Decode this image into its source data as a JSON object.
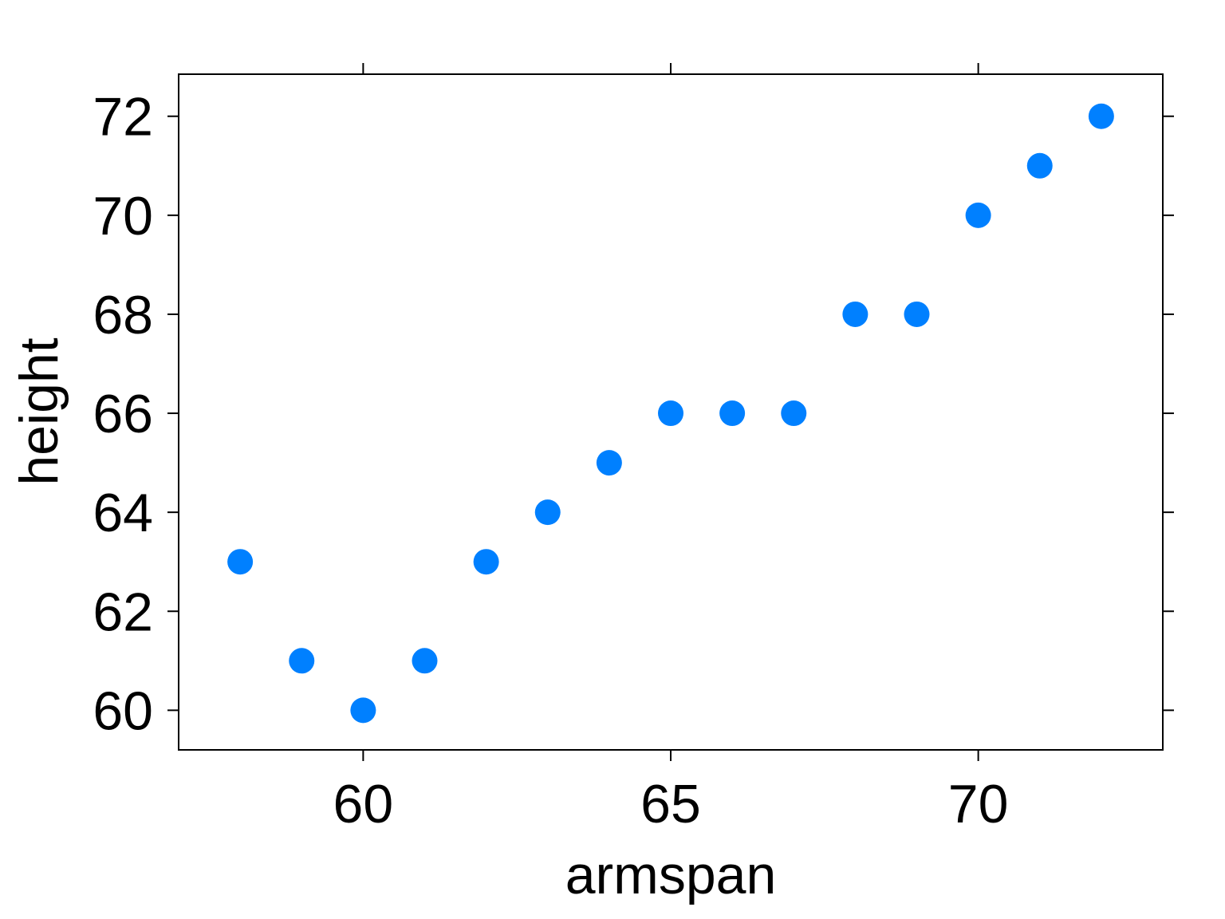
{
  "chart_data": {
    "type": "scatter",
    "title": "",
    "xlabel": "armspan",
    "ylabel": "height",
    "xlim": [
      57,
      73
    ],
    "ylim": [
      59.2,
      72.85
    ],
    "x_ticks": [
      60,
      65,
      70
    ],
    "y_ticks": [
      60,
      62,
      64,
      66,
      68,
      70,
      72
    ],
    "grid": false,
    "marker_color": "#0080FF",
    "series": [
      {
        "name": "",
        "points": [
          {
            "x": 58,
            "y": 63
          },
          {
            "x": 59,
            "y": 61
          },
          {
            "x": 60,
            "y": 60
          },
          {
            "x": 61,
            "y": 61
          },
          {
            "x": 62,
            "y": 63
          },
          {
            "x": 63,
            "y": 64
          },
          {
            "x": 64,
            "y": 65
          },
          {
            "x": 65,
            "y": 66
          },
          {
            "x": 66,
            "y": 66
          },
          {
            "x": 67,
            "y": 66
          },
          {
            "x": 68,
            "y": 68
          },
          {
            "x": 69,
            "y": 68
          },
          {
            "x": 70,
            "y": 70
          },
          {
            "x": 71,
            "y": 71
          },
          {
            "x": 72,
            "y": 72
          }
        ]
      }
    ]
  }
}
